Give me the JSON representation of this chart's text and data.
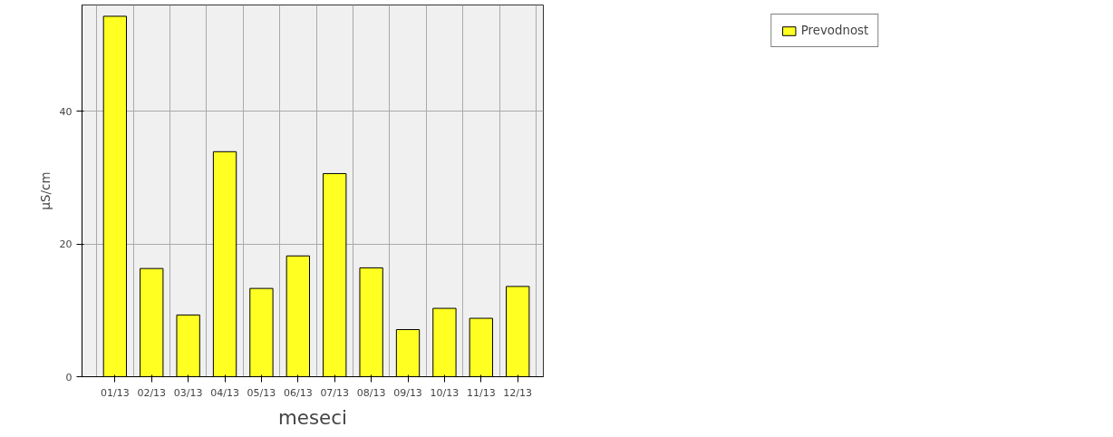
{
  "chart_data": {
    "type": "bar",
    "xlabel": "meseci",
    "ylabel": "µS/cm",
    "categories": [
      "01/13",
      "02/13",
      "03/13",
      "04/13",
      "05/13",
      "06/13",
      "07/13",
      "08/13",
      "09/13",
      "10/13",
      "11/13",
      "12/13"
    ],
    "series": [
      {
        "name": "Prevodnost",
        "color": "#ffff22",
        "values": [
          54.3,
          16.3,
          9.3,
          33.9,
          13.3,
          18.2,
          30.6,
          16.4,
          7.1,
          10.3,
          8.8,
          13.6
        ]
      }
    ],
    "ylim": [
      0,
      56
    ],
    "yticks": [
      0,
      20,
      40
    ],
    "grid": true,
    "legend": "top right"
  }
}
